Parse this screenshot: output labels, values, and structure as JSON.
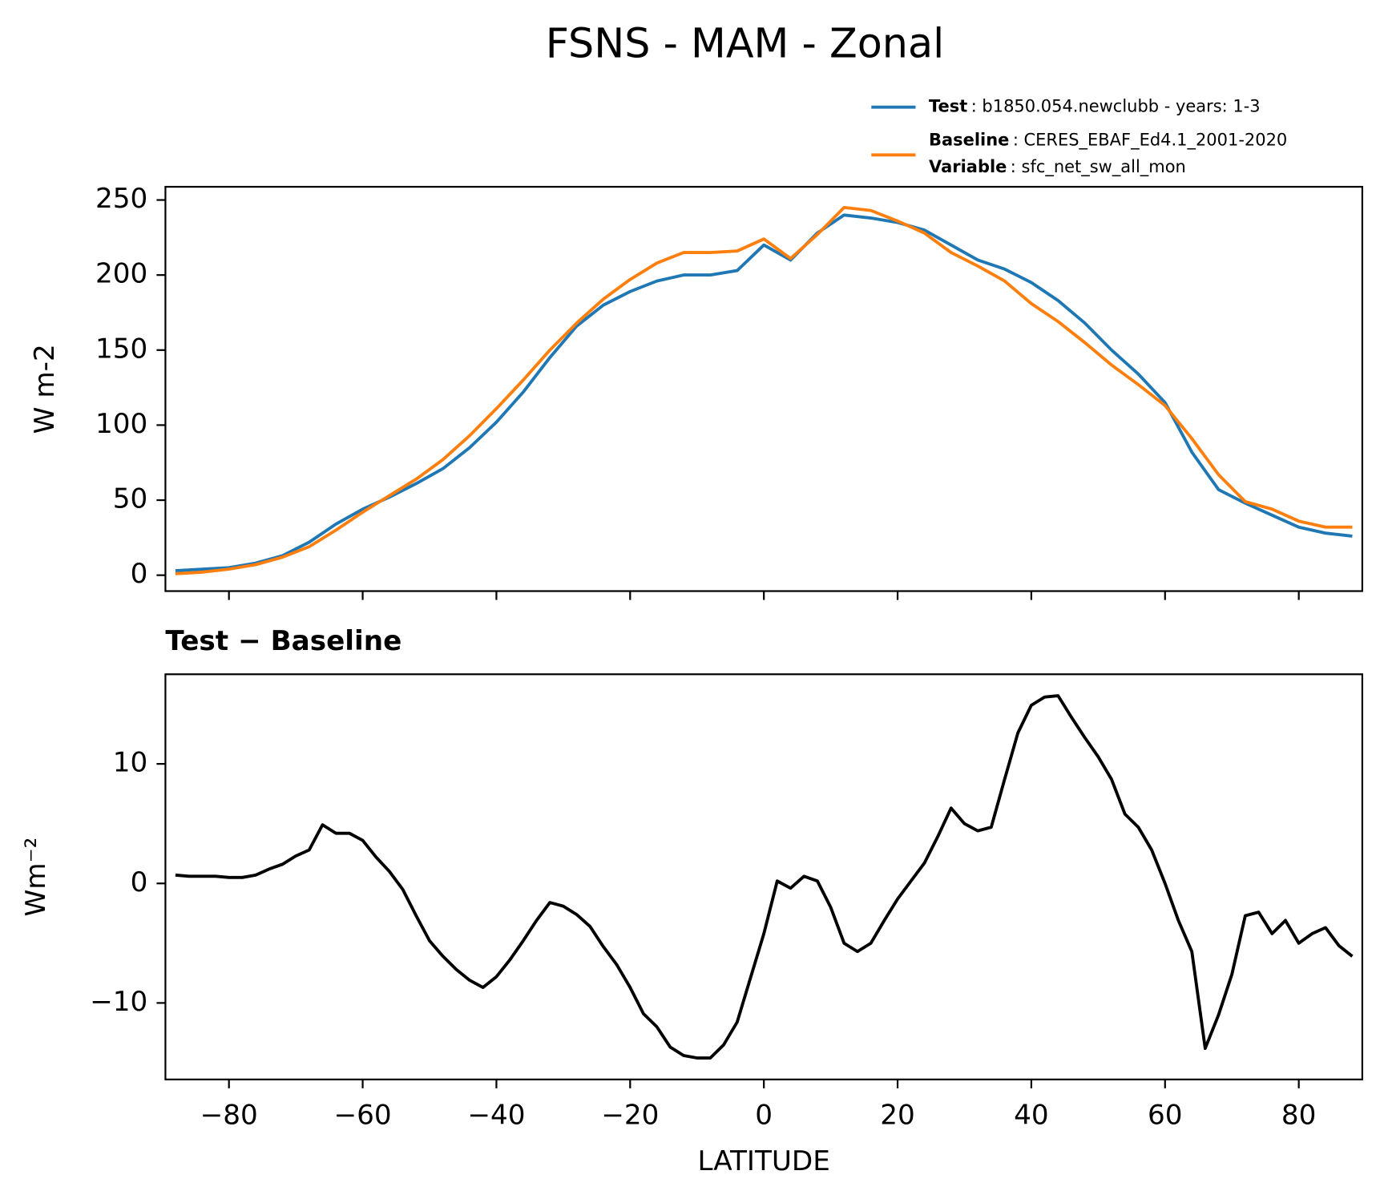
{
  "title": "FSNS - MAM - Zonal",
  "chart_data": [
    {
      "type": "line",
      "ylabel": "W m-2",
      "x": [
        -88,
        -84,
        -80,
        -76,
        -72,
        -68,
        -64,
        -60,
        -56,
        -52,
        -48,
        -44,
        -40,
        -36,
        -32,
        -28,
        -24,
        -20,
        -16,
        -12,
        -8,
        -4,
        0,
        4,
        8,
        12,
        16,
        20,
        24,
        28,
        32,
        36,
        40,
        44,
        48,
        52,
        56,
        60,
        64,
        68,
        72,
        76,
        80,
        84,
        88
      ],
      "series": [
        {
          "name": "Test",
          "description": ": b1850.054.newclubb - years: 1-3",
          "color": "#1f77b4",
          "values": [
            3,
            4,
            5,
            8,
            13,
            22,
            34,
            44,
            52,
            61,
            71,
            85,
            102,
            122,
            145,
            166,
            180,
            189,
            196,
            200,
            200,
            203,
            220,
            210,
            228,
            240,
            238,
            235,
            230,
            220,
            210,
            204,
            195,
            183,
            168,
            150,
            134,
            115,
            82,
            57,
            48,
            40,
            32,
            28,
            26
          ]
        },
        {
          "name": "Baseline",
          "description": ": CERES_EBAF_Ed4.1_2001-2020",
          "extra_name": "Variable",
          "extra_description": ": sfc_net_sw_all_mon",
          "color": "#ff7f0e",
          "values": [
            1,
            2,
            4,
            7,
            12,
            19,
            30,
            42,
            53,
            64,
            77,
            93,
            111,
            130,
            150,
            168,
            184,
            197,
            208,
            215,
            215,
            216,
            224,
            211,
            227,
            245,
            243,
            236,
            228,
            215,
            206,
            196,
            181,
            169,
            155,
            140,
            127,
            113,
            91,
            67,
            49,
            44,
            36,
            32,
            32
          ]
        }
      ],
      "xlim": [
        -89.5,
        89.5
      ],
      "xticks": [
        -80,
        -60,
        -40,
        -20,
        0,
        20,
        40,
        60,
        80
      ],
      "ylim": [
        -10.6,
        258.8
      ],
      "yticks": [
        0,
        50,
        100,
        150,
        200,
        250
      ]
    },
    {
      "type": "line",
      "title": "Test − Baseline",
      "xlabel": "LATITUDE",
      "ylabel": "Wm⁻²",
      "x": [
        -88,
        -86,
        -84,
        -82,
        -80,
        -78,
        -76,
        -74,
        -72,
        -70,
        -68,
        -66,
        -64,
        -62,
        -60,
        -58,
        -56,
        -54,
        -52,
        -50,
        -48,
        -46,
        -44,
        -42,
        -40,
        -38,
        -36,
        -34,
        -32,
        -30,
        -28,
        -26,
        -24,
        -22,
        -20,
        -18,
        -16,
        -14,
        -12,
        -10,
        -8,
        -6,
        -4,
        -2,
        0,
        2,
        4,
        6,
        8,
        10,
        12,
        14,
        16,
        18,
        20,
        22,
        24,
        26,
        28,
        30,
        32,
        34,
        36,
        38,
        40,
        42,
        44,
        46,
        48,
        50,
        52,
        54,
        56,
        58,
        60,
        62,
        64,
        66,
        68,
        70,
        72,
        74,
        76,
        78,
        80,
        82,
        84,
        86,
        88
      ],
      "series": [
        {
          "color": "#000000",
          "values": [
            0.7,
            0.6,
            0.6,
            0.6,
            0.5,
            0.5,
            0.7,
            1.2,
            1.6,
            2.3,
            2.8,
            4.9,
            4.2,
            4.2,
            3.6,
            2.2,
            1.0,
            -0.5,
            -2.7,
            -4.8,
            -6.1,
            -7.2,
            -8.1,
            -8.7,
            -7.8,
            -6.4,
            -4.8,
            -3.1,
            -1.6,
            -1.9,
            -2.6,
            -3.6,
            -5.3,
            -6.8,
            -8.7,
            -10.9,
            -12,
            -13.7,
            -14.4,
            -14.6,
            -14.6,
            -13.5,
            -11.6,
            -7.9,
            -4.2,
            0.2,
            -0.4,
            0.6,
            0.2,
            -2,
            -5,
            -5.7,
            -5,
            -3.1,
            -1.3,
            0.2,
            1.7,
            3.9,
            6.3,
            5,
            4.4,
            4.7,
            8.7,
            12.6,
            14.9,
            15.6,
            15.7,
            13.9,
            12.2,
            10.6,
            8.7,
            5.8,
            4.7,
            2.8,
            0,
            -3.1,
            -5.7,
            -13.8,
            -11,
            -7.6,
            -2.7,
            -2.4,
            -4.2,
            -3.1,
            -5,
            -4.2,
            -3.7,
            -5.2,
            -6.1
          ]
        }
      ],
      "xlim": [
        -89.5,
        89.5
      ],
      "xticks": [
        {
          "value": -80,
          "label": "−80"
        },
        {
          "value": -60,
          "label": "−60"
        },
        {
          "value": -40,
          "label": "−40"
        },
        {
          "value": -20,
          "label": "−20"
        },
        0,
        20,
        40,
        60,
        80
      ],
      "ylim": [
        -16.4,
        17.5
      ],
      "yticks": [
        {
          "value": -10,
          "label": "−10"
        },
        0,
        10
      ]
    }
  ]
}
